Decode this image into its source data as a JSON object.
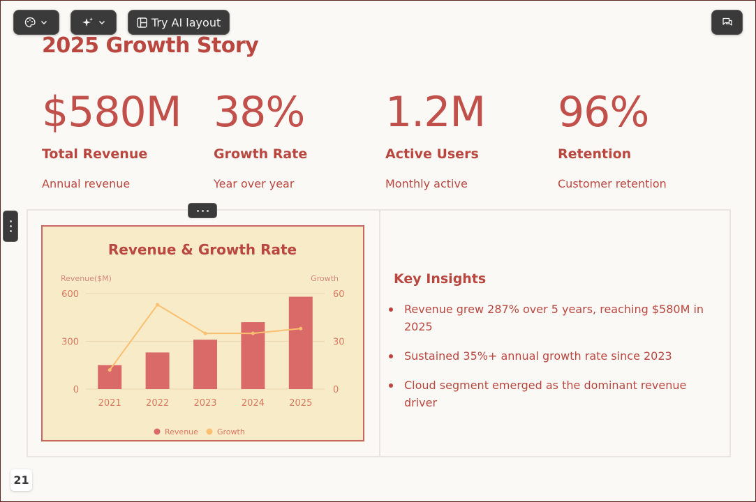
{
  "toolbar": {
    "theme_icon": "palette-icon",
    "ai_icon": "sparkles-icon",
    "ai_layout_icon": "layout-icon",
    "ai_layout_label": "Try AI layout",
    "comments_icon": "chat-icon"
  },
  "slide": {
    "title": "2025 Growth Story",
    "stats": [
      {
        "value": "$580M",
        "label": "Total Revenue",
        "desc": "Annual revenue"
      },
      {
        "value": "38%",
        "label": "Growth Rate",
        "desc": "Year over year"
      },
      {
        "value": "1.2M",
        "label": "Active Users",
        "desc": "Monthly active"
      },
      {
        "value": "96%",
        "label": "Retention",
        "desc": "Customer retention"
      }
    ],
    "insights": {
      "title": "Key Insights",
      "items": [
        "Revenue grew 287% over 5 years, reaching $580M in 2025",
        "Sustained 35%+ annual growth rate since 2023",
        "Cloud segment emerged as the dominant revenue driver"
      ]
    },
    "page_number": "21"
  },
  "colors": {
    "accent": "#b9473f",
    "bar": "#d96a68",
    "line": "#fbbf72",
    "chart_bg": "#f8ebc8",
    "slide_bg": "#fbf9f6"
  },
  "chart_data": {
    "type": "bar",
    "title": "Revenue & Growth Rate",
    "categories": [
      "2021",
      "2022",
      "2023",
      "2024",
      "2025"
    ],
    "y_left_label": "Revenue($M)",
    "y_right_label": "Growth",
    "y_left_lim": [
      0,
      600
    ],
    "y_right_lim": [
      0,
      60
    ],
    "y_left_ticks": [
      "0",
      "300",
      "600"
    ],
    "y_right_ticks": [
      "0",
      "30",
      "60"
    ],
    "grid": true,
    "legend_position": "bottom",
    "series": [
      {
        "name": "Revenue",
        "type": "bar",
        "axis": "left",
        "values": [
          150,
          230,
          310,
          420,
          580
        ],
        "color": "#d96a68"
      },
      {
        "name": "Growth",
        "type": "line",
        "axis": "right",
        "values": [
          12,
          53,
          35,
          35,
          38
        ],
        "color": "#fbbf72"
      }
    ]
  }
}
